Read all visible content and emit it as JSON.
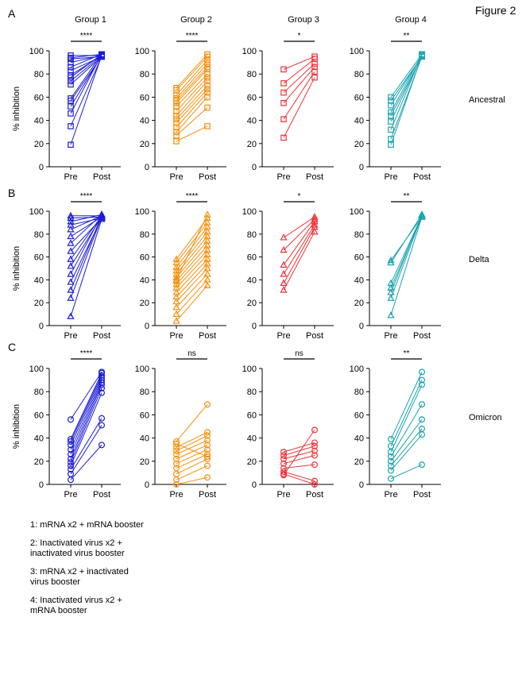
{
  "figure_label": "Figure 2",
  "panel_letters": [
    "A",
    "B",
    "C"
  ],
  "group_titles": [
    "Group 1",
    "Group 2",
    "Group 3",
    "Group 4"
  ],
  "variants": [
    "Ancestral",
    "Delta",
    "Omicron"
  ],
  "y_label": "% inhibition",
  "x_categories": [
    "Pre",
    "Post"
  ],
  "legend_items": [
    "1: mRNA x2 + mRNA booster",
    "2: Inactivated virus x2 +\ninactivated virus booster",
    "3: mRNA x2 + inactivated\nvirus booster",
    "4: Inactivated virus x2 +\nmRNA booster"
  ],
  "colors": {
    "group1": "#1c1cd6",
    "group2": "#f5900e",
    "group3": "#ee3338",
    "group4": "#1aa3b0"
  },
  "markers": {
    "Ancestral": "square",
    "Delta": "triangle",
    "Omicron": "circle"
  },
  "chart_data": [
    {
      "type": "scatter",
      "variant": "Ancestral",
      "group": "Group 1",
      "significance": "****",
      "ylim": [
        0,
        100
      ],
      "yticks": [
        0,
        20,
        40,
        60,
        80,
        100
      ],
      "pairs": [
        [
          19,
          96
        ],
        [
          35,
          95
        ],
        [
          46,
          97
        ],
        [
          52,
          96
        ],
        [
          57,
          95
        ],
        [
          59,
          97
        ],
        [
          71,
          95
        ],
        [
          74,
          96
        ],
        [
          77,
          97
        ],
        [
          79,
          96
        ],
        [
          83,
          95
        ],
        [
          86,
          97
        ],
        [
          90,
          96
        ],
        [
          93,
          95
        ],
        [
          94,
          97
        ],
        [
          96,
          96
        ]
      ]
    },
    {
      "type": "scatter",
      "variant": "Ancestral",
      "group": "Group 2",
      "significance": "****",
      "ylim": [
        0,
        100
      ],
      "yticks": [
        0,
        20,
        40,
        60,
        80,
        100
      ],
      "pairs": [
        [
          22,
          35
        ],
        [
          27,
          51
        ],
        [
          30,
          60
        ],
        [
          34,
          64
        ],
        [
          38,
          67
        ],
        [
          41,
          70
        ],
        [
          44,
          74
        ],
        [
          48,
          77
        ],
        [
          52,
          80
        ],
        [
          55,
          84
        ],
        [
          57,
          86
        ],
        [
          59,
          89
        ],
        [
          62,
          92
        ],
        [
          66,
          95
        ],
        [
          68,
          97
        ]
      ]
    },
    {
      "type": "scatter",
      "variant": "Ancestral",
      "group": "Group 3",
      "significance": "*",
      "ylim": [
        0,
        100
      ],
      "yticks": [
        0,
        20,
        40,
        60,
        80,
        100
      ],
      "pairs": [
        [
          25,
          77
        ],
        [
          41,
          82
        ],
        [
          55,
          86
        ],
        [
          64,
          89
        ],
        [
          72,
          93
        ],
        [
          84,
          95
        ]
      ]
    },
    {
      "type": "scatter",
      "variant": "Ancestral",
      "group": "Group 4",
      "significance": "**",
      "ylim": [
        0,
        100
      ],
      "yticks": [
        0,
        20,
        40,
        60,
        80,
        100
      ],
      "pairs": [
        [
          19,
          96
        ],
        [
          24,
          95
        ],
        [
          32,
          97
        ],
        [
          39,
          96
        ],
        [
          44,
          95
        ],
        [
          47,
          97
        ],
        [
          53,
          96
        ],
        [
          57,
          95
        ],
        [
          60,
          97
        ]
      ]
    },
    {
      "type": "scatter",
      "variant": "Delta",
      "group": "Group 1",
      "significance": "****",
      "ylim": [
        0,
        100
      ],
      "yticks": [
        0,
        20,
        40,
        60,
        80,
        100
      ],
      "pairs": [
        [
          8,
          93
        ],
        [
          24,
          95
        ],
        [
          31,
          96
        ],
        [
          38,
          94
        ],
        [
          45,
          97
        ],
        [
          52,
          95
        ],
        [
          58,
          96
        ],
        [
          65,
          94
        ],
        [
          72,
          97
        ],
        [
          78,
          95
        ],
        [
          84,
          96
        ],
        [
          88,
          94
        ],
        [
          91,
          97
        ],
        [
          94,
          95
        ],
        [
          96,
          96
        ]
      ]
    },
    {
      "type": "scatter",
      "variant": "Delta",
      "group": "Group 2",
      "significance": "****",
      "ylim": [
        0,
        100
      ],
      "yticks": [
        0,
        20,
        40,
        60,
        80,
        100
      ],
      "pairs": [
        [
          4,
          35
        ],
        [
          10,
          40
        ],
        [
          16,
          45
        ],
        [
          21,
          50
        ],
        [
          25,
          54
        ],
        [
          29,
          58
        ],
        [
          33,
          62
        ],
        [
          36,
          66
        ],
        [
          39,
          70
        ],
        [
          42,
          74
        ],
        [
          45,
          78
        ],
        [
          48,
          82
        ],
        [
          51,
          86
        ],
        [
          55,
          90
        ],
        [
          58,
          94
        ],
        [
          40,
          97
        ]
      ]
    },
    {
      "type": "scatter",
      "variant": "Delta",
      "group": "Group 3",
      "significance": "*",
      "ylim": [
        0,
        100
      ],
      "yticks": [
        0,
        20,
        40,
        60,
        80,
        100
      ],
      "pairs": [
        [
          31,
          82
        ],
        [
          37,
          86
        ],
        [
          45,
          88
        ],
        [
          53,
          91
        ],
        [
          66,
          93
        ],
        [
          77,
          95
        ]
      ]
    },
    {
      "type": "scatter",
      "variant": "Delta",
      "group": "Group 4",
      "significance": "**",
      "ylim": [
        0,
        100
      ],
      "yticks": [
        0,
        20,
        40,
        60,
        80,
        100
      ],
      "pairs": [
        [
          9,
          95
        ],
        [
          24,
          96
        ],
        [
          29,
          97
        ],
        [
          33,
          95
        ],
        [
          37,
          96
        ],
        [
          55,
          97
        ],
        [
          57,
          95
        ]
      ]
    },
    {
      "type": "scatter",
      "variant": "Omicron",
      "group": "Group 1",
      "significance": "****",
      "ylim": [
        0,
        100
      ],
      "yticks": [
        0,
        20,
        40,
        60,
        80,
        100
      ],
      "pairs": [
        [
          4,
          34
        ],
        [
          9,
          51
        ],
        [
          13,
          57
        ],
        [
          16,
          79
        ],
        [
          19,
          83
        ],
        [
          22,
          86
        ],
        [
          26,
          88
        ],
        [
          30,
          90
        ],
        [
          34,
          92
        ],
        [
          37,
          94
        ],
        [
          39,
          96
        ],
        [
          56,
          97
        ]
      ]
    },
    {
      "type": "scatter",
      "variant": "Omicron",
      "group": "Group 2",
      "significance": "ns",
      "ylim": [
        0,
        100
      ],
      "yticks": [
        0,
        20,
        40,
        60,
        80,
        100
      ],
      "pairs": [
        [
          0,
          6
        ],
        [
          4,
          16
        ],
        [
          9,
          22
        ],
        [
          14,
          26
        ],
        [
          18,
          30
        ],
        [
          22,
          34
        ],
        [
          26,
          38
        ],
        [
          29,
          42
        ],
        [
          32,
          45
        ],
        [
          35,
          24
        ],
        [
          37,
          69
        ]
      ]
    },
    {
      "type": "scatter",
      "variant": "Omicron",
      "group": "Group 3",
      "significance": "ns",
      "ylim": [
        0,
        100
      ],
      "yticks": [
        0,
        20,
        40,
        60,
        80,
        100
      ],
      "pairs": [
        [
          9,
          0
        ],
        [
          11,
          3
        ],
        [
          14,
          17
        ],
        [
          18,
          25
        ],
        [
          22,
          29
        ],
        [
          25,
          33
        ],
        [
          28,
          36
        ],
        [
          8,
          47
        ]
      ]
    },
    {
      "type": "scatter",
      "variant": "Omicron",
      "group": "Group 4",
      "significance": "**",
      "ylim": [
        0,
        100
      ],
      "yticks": [
        0,
        20,
        40,
        60,
        80,
        100
      ],
      "pairs": [
        [
          5,
          17
        ],
        [
          12,
          43
        ],
        [
          16,
          48
        ],
        [
          20,
          56
        ],
        [
          24,
          69
        ],
        [
          28,
          86
        ],
        [
          33,
          90
        ],
        [
          39,
          97
        ]
      ]
    }
  ]
}
